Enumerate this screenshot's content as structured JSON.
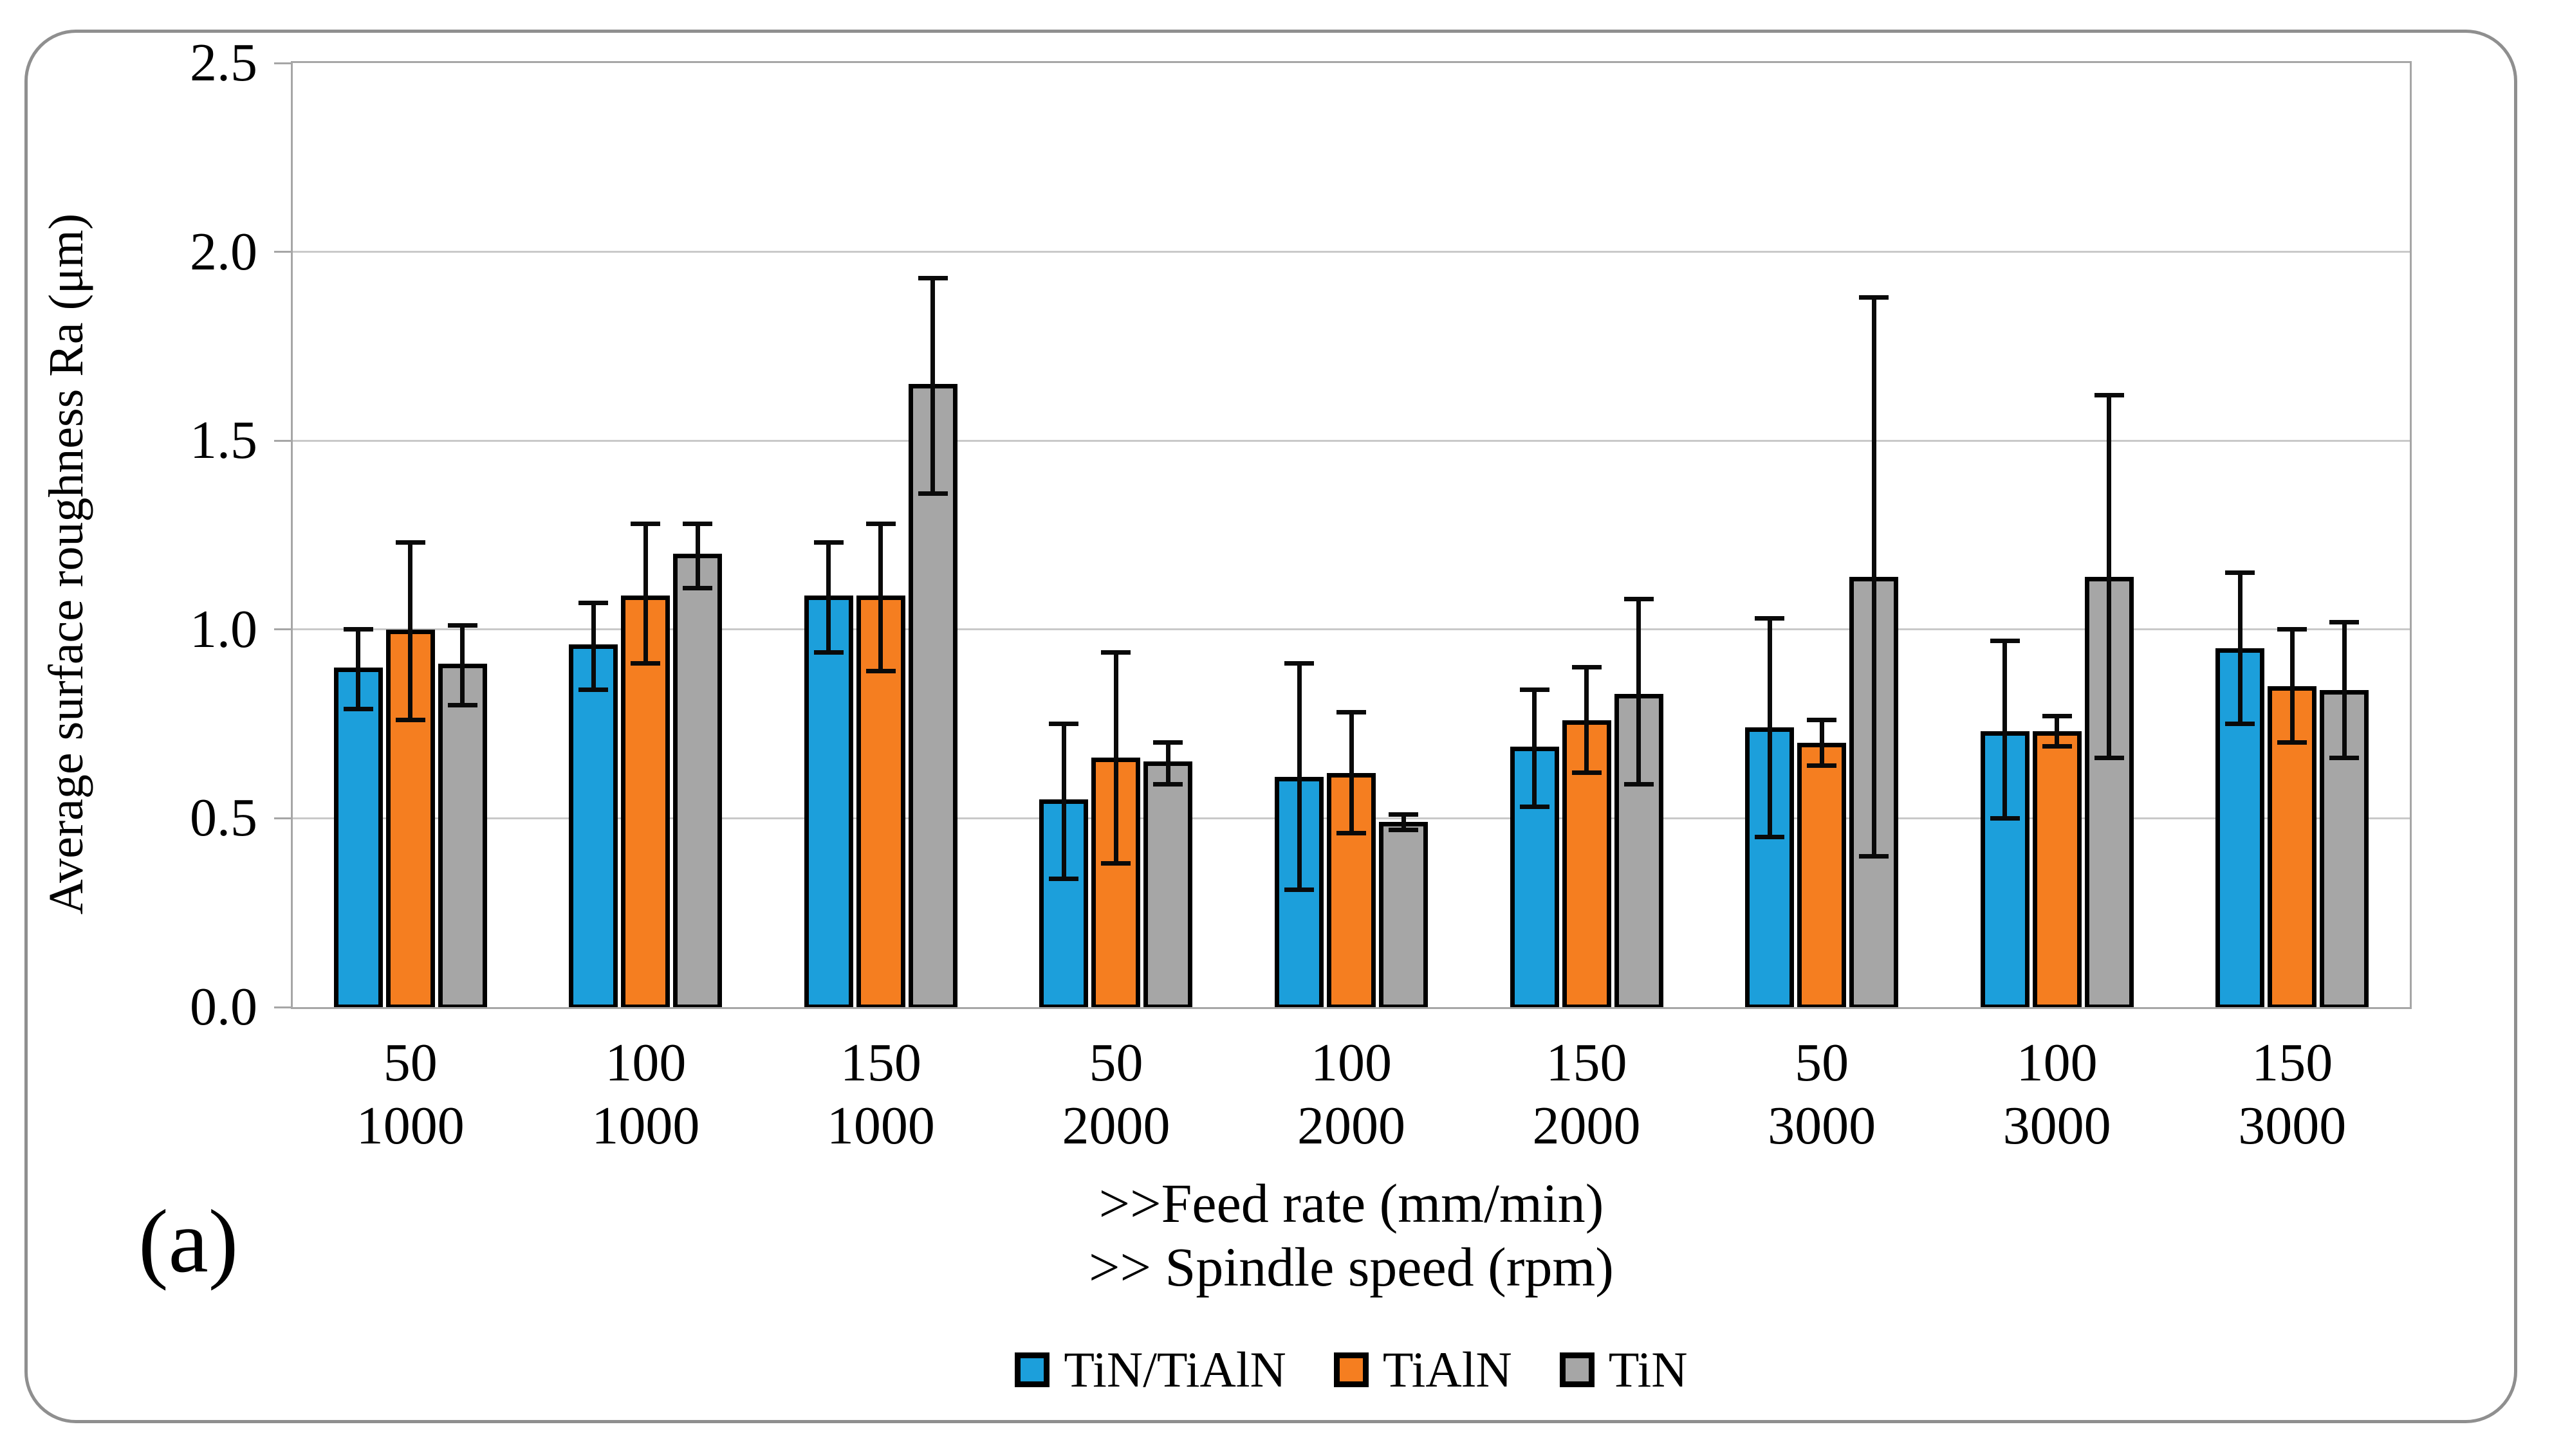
{
  "figure": {
    "panel_label": "(a)",
    "y_axis": {
      "title": "Average surface roughness Ra (μm)",
      "min": 0,
      "max": 2.5,
      "step": 0.5,
      "tick_labels": [
        "0.0",
        "0.5",
        "1.0",
        "1.5",
        "2.0",
        "2.5"
      ]
    },
    "x_axis": {
      "title_line1": ">>Feed rate (mm/min)",
      "title_line2": ">> Spindle speed (rpm)"
    },
    "colors": {
      "series_blue": "#1C9FDB",
      "series_orange": "#F57E20",
      "series_gray": "#A6A6A6",
      "gridline": "#C9C9C9",
      "plot_border": "#A6A6A6",
      "frame_border": "#8F8F8F",
      "error_bar": "#0A0A0A"
    }
  },
  "chart_data": {
    "type": "bar",
    "title": "",
    "ylabel": "Average surface roughness Ra (μm)",
    "xlabel_line1": ">>Feed rate (mm/min)",
    "xlabel_line2": ">> Spindle speed (rpm)",
    "ylim": [
      0,
      2.5
    ],
    "ytick_step": 0.5,
    "grid": true,
    "legend_position": "bottom",
    "error_bars": true,
    "categories": [
      {
        "feed": "50",
        "speed": "1000"
      },
      {
        "feed": "100",
        "speed": "1000"
      },
      {
        "feed": "150",
        "speed": "1000"
      },
      {
        "feed": "50",
        "speed": "2000"
      },
      {
        "feed": "100",
        "speed": "2000"
      },
      {
        "feed": "150",
        "speed": "2000"
      },
      {
        "feed": "50",
        "speed": "3000"
      },
      {
        "feed": "100",
        "speed": "3000"
      },
      {
        "feed": "150",
        "speed": "3000"
      }
    ],
    "series": [
      {
        "name": "TiN/TiAlN",
        "color": "#1C9FDB",
        "values": [
          0.9,
          0.96,
          1.09,
          0.55,
          0.61,
          0.69,
          0.74,
          0.73,
          0.95
        ],
        "err_low": [
          0.79,
          0.84,
          0.94,
          0.34,
          0.31,
          0.53,
          0.45,
          0.5,
          0.75
        ],
        "err_high": [
          1.0,
          1.07,
          1.23,
          0.75,
          0.91,
          0.84,
          1.03,
          0.97,
          1.15
        ]
      },
      {
        "name": "TiAlN",
        "color": "#F57E20",
        "values": [
          1.0,
          1.09,
          1.09,
          0.66,
          0.62,
          0.76,
          0.7,
          0.73,
          0.85
        ],
        "err_low": [
          0.76,
          0.91,
          0.89,
          0.38,
          0.46,
          0.62,
          0.64,
          0.69,
          0.7
        ],
        "err_high": [
          1.23,
          1.28,
          1.28,
          0.94,
          0.78,
          0.9,
          0.76,
          0.77,
          1.0
        ]
      },
      {
        "name": "TiN",
        "color": "#A6A6A6",
        "values": [
          0.91,
          1.2,
          1.65,
          0.65,
          0.49,
          0.83,
          1.14,
          1.14,
          0.84
        ],
        "err_low": [
          0.8,
          1.11,
          1.36,
          0.59,
          0.47,
          0.59,
          0.4,
          0.66,
          0.66
        ],
        "err_high": [
          1.01,
          1.28,
          1.93,
          0.7,
          0.51,
          1.08,
          1.88,
          1.62,
          1.02
        ]
      }
    ]
  }
}
